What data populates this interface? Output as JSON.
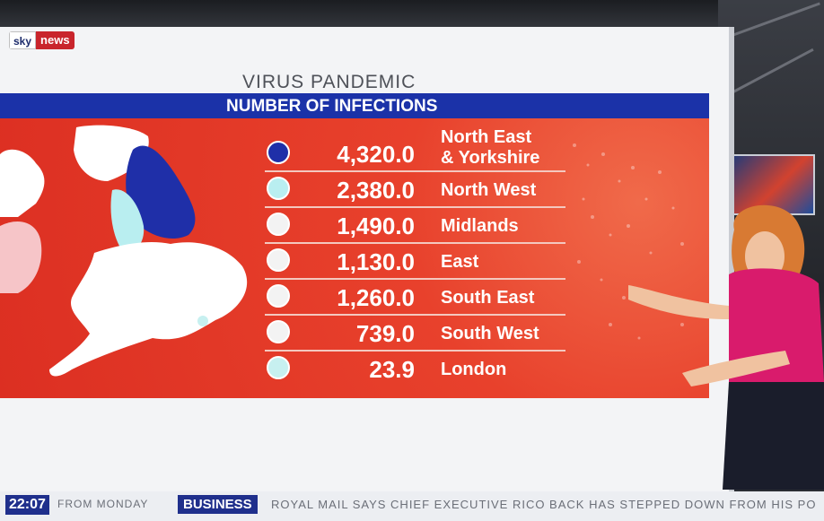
{
  "brand": {
    "sky": "sky",
    "news": "news"
  },
  "graphic": {
    "overline": "VIRUS PANDEMIC",
    "title": "NUMBER OF INFECTIONS",
    "rows": [
      {
        "value": "4,320.0",
        "region_line1": "North East",
        "region_line2": "& Yorkshire",
        "dot_color": "#1f2fa8"
      },
      {
        "value": "2,380.0",
        "region": "North West",
        "dot_color": "#b9eef0"
      },
      {
        "value": "1,490.0",
        "region": "Midlands",
        "dot_color": "#f3f3f3"
      },
      {
        "value": "1,130.0",
        "region": "East",
        "dot_color": "#f3f3f3"
      },
      {
        "value": "1,260.0",
        "region": "South East",
        "dot_color": "#f3f3f3"
      },
      {
        "value": "739.0",
        "region": "South West",
        "dot_color": "#f3f3f3"
      },
      {
        "value": "23.9",
        "region": "London",
        "dot_color": "#c7f0f0"
      }
    ]
  },
  "ticker": {
    "time": "22:07",
    "from": "FROM MONDAY",
    "tag": "BUSINESS",
    "headline": "ROYAL MAIL SAYS CHIEF EXECUTIVE RICO BACK HAS STEPPED DOWN FROM HIS PO"
  },
  "colors": {
    "accent_blue": "#1b32a8",
    "panel_red": "#e03a27",
    "ticker_blue": "#1f2f8c"
  }
}
